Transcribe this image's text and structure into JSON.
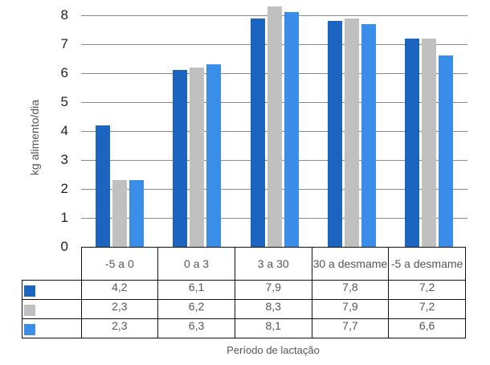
{
  "chart_data": {
    "type": "bar",
    "title": "",
    "xlabel": "Período de lactação",
    "ylabel": "kg alimento/dia",
    "ylim": [
      0,
      8
    ],
    "yticks": [
      0,
      1,
      2,
      3,
      4,
      5,
      6,
      7,
      8
    ],
    "grid": true,
    "legend_position": "data-table",
    "categories": [
      "-5 a 0",
      "0 a 3",
      "3 a 30",
      "30 a desmame",
      "-5 a desmame"
    ],
    "series": [
      {
        "name": "",
        "color": "#1b65c0",
        "values": [
          4.2,
          6.1,
          7.9,
          7.8,
          7.2
        ],
        "labels": [
          "4,2",
          "6,1",
          "7,9",
          "7,8",
          "7,2"
        ]
      },
      {
        "name": "",
        "color": "#c0c0c0",
        "values": [
          2.3,
          6.2,
          8.3,
          7.9,
          7.2
        ],
        "labels": [
          "2,3",
          "6,2",
          "8,3",
          "7,9",
          "7,2"
        ]
      },
      {
        "name": "",
        "color": "#3a8ee8",
        "values": [
          2.3,
          6.3,
          8.1,
          7.7,
          6.6
        ],
        "labels": [
          "2,3",
          "6,3",
          "8,1",
          "7,7",
          "6,6"
        ]
      }
    ]
  }
}
